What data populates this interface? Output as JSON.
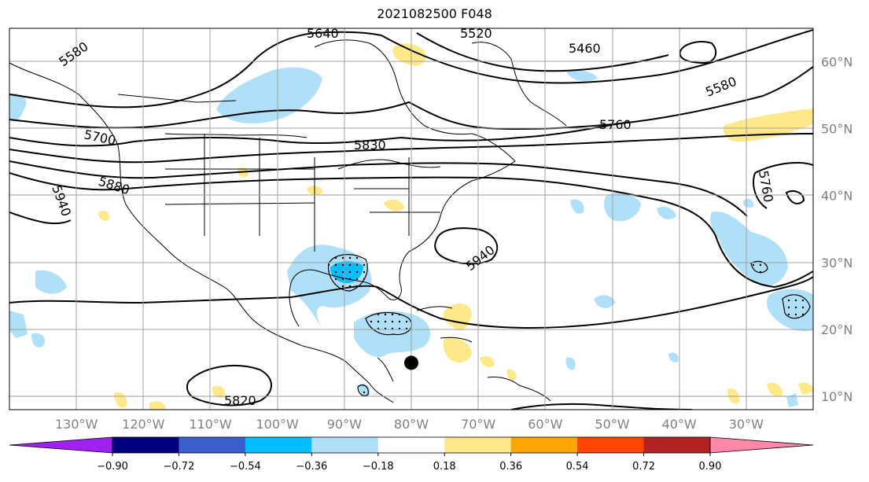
{
  "title": "2021082500 F048",
  "map": {
    "extent": {
      "lon_min": -140,
      "lon_max": -20,
      "lat_min": 8,
      "lat_max": 65
    },
    "lat_ticks": [
      {
        "value": 60,
        "label": "60°N"
      },
      {
        "value": 50,
        "label": "50°N"
      },
      {
        "value": 40,
        "label": "40°N"
      },
      {
        "value": 30,
        "label": "30°N"
      },
      {
        "value": 20,
        "label": "20°N"
      },
      {
        "value": 10,
        "label": "10°N"
      }
    ],
    "lon_ticks": [
      {
        "value": -130,
        "label": "130°W"
      },
      {
        "value": -120,
        "label": "120°W"
      },
      {
        "value": -110,
        "label": "110°W"
      },
      {
        "value": -100,
        "label": "100°W"
      },
      {
        "value": -90,
        "label": "90°W"
      },
      {
        "value": -80,
        "label": "80°W"
      },
      {
        "value": -70,
        "label": "70°W"
      },
      {
        "value": -60,
        "label": "60°W"
      },
      {
        "value": -50,
        "label": "50°W"
      },
      {
        "value": -40,
        "label": "40°W"
      },
      {
        "value": -30,
        "label": "30°W"
      }
    ],
    "grid": true,
    "contour_labels": [
      "5640",
      "5520",
      "5460",
      "5580",
      "5580",
      "5760",
      "5700",
      "5830",
      "5880",
      "5760",
      "5940",
      "5940",
      "5820"
    ],
    "marker": {
      "name": "storm-center",
      "lon": -80,
      "lat": 15
    }
  },
  "colorbar": {
    "colors": [
      "#a020f0",
      "#000080",
      "#3a5fcd",
      "#00bfff",
      "#b0e0f8",
      "#ffffff",
      "#ffe88a",
      "#ffa500",
      "#ff4500",
      "#b22222",
      "#ff88aa"
    ],
    "ticks": [
      "−0.90",
      "−0.72",
      "−0.54",
      "−0.36",
      "−0.18",
      "0.18",
      "0.36",
      "0.54",
      "0.72",
      "0.90"
    ]
  }
}
